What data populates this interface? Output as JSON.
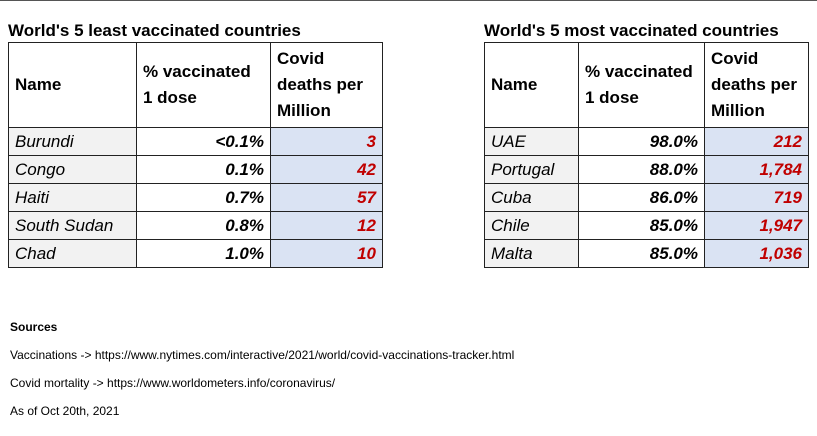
{
  "least_vaccinated": {
    "title": "World's 5 least vaccinated countries",
    "headers": {
      "name": "Name",
      "vaccinated": "% vaccinated 1 dose",
      "deaths": "Covid deaths per Million"
    },
    "rows": [
      {
        "name": "Burundi",
        "vaccinated": "<0.1%",
        "deaths": "3"
      },
      {
        "name": "Congo",
        "vaccinated": "0.1%",
        "deaths": "42"
      },
      {
        "name": "Haiti",
        "vaccinated": "0.7%",
        "deaths": "57"
      },
      {
        "name": "South Sudan",
        "vaccinated": "0.8%",
        "deaths": "12"
      },
      {
        "name": "Chad",
        "vaccinated": "1.0%",
        "deaths": "10"
      }
    ]
  },
  "most_vaccinated": {
    "title": "World's 5 most vaccinated countries",
    "headers": {
      "name": "Name",
      "vaccinated": "% vaccinated 1 dose",
      "deaths": "Covid deaths per Million"
    },
    "rows": [
      {
        "name": "UAE",
        "vaccinated": "98.0%",
        "deaths": "212"
      },
      {
        "name": "Portugal",
        "vaccinated": "88.0%",
        "deaths": "1,784"
      },
      {
        "name": "Cuba",
        "vaccinated": "86.0%",
        "deaths": "719"
      },
      {
        "name": "Chile",
        "vaccinated": "85.0%",
        "deaths": "1,947"
      },
      {
        "name": "Malta",
        "vaccinated": "85.0%",
        "deaths": "1,036"
      }
    ]
  },
  "sources": {
    "heading": "Sources",
    "vaccinations": "Vaccinations -> https://www.nytimes.com/interactive/2021/world/covid-vaccinations-tracker.html",
    "mortality": "Covid mortality -> https://www.worldometers.info/coronavirus/",
    "as_of": "As of Oct 20th, 2021"
  },
  "colors": {
    "deaths_text": "#c00000",
    "deaths_fill": "#dae3f3",
    "name_fill": "#f2f2f2",
    "border": "#222222"
  }
}
